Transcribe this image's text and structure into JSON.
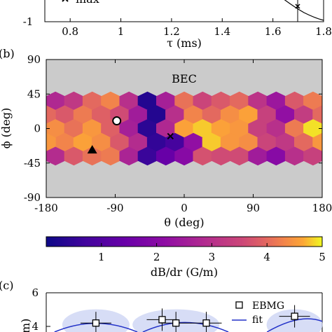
{
  "chart_data": [
    {
      "type": "line",
      "panel_label": "",
      "xlabel": "τ (ms)",
      "xlim": [
        0.7,
        1.8
      ],
      "xticks": [
        "0.8",
        "1",
        "1.2",
        "1.4",
        "1.6",
        "1.8"
      ],
      "yticks": [
        "-1"
      ],
      "legend": [
        "max"
      ],
      "marker": {
        "x": 1.7,
        "y": -0.85
      }
    },
    {
      "type": "heatmap",
      "panel_label": "(b)",
      "title": "BEC",
      "xlabel": "θ (deg)",
      "ylabel": "ϕ (deg)",
      "xlim": [
        -180,
        180
      ],
      "ylim": [
        -90,
        90
      ],
      "xticks": [
        "-180",
        "-90",
        "0",
        "90",
        "180"
      ],
      "yticks": [
        "90",
        "45",
        "0",
        "-45",
        "-90"
      ],
      "colorbar": {
        "label": "dB/dr (G/m)",
        "range": [
          0,
          5
        ],
        "ticks": [
          "1",
          "2",
          "3",
          "4",
          "5"
        ],
        "colormap": "plasma"
      },
      "cell_grid": {
        "columns": 15,
        "rows": 5,
        "theta_start": -180,
        "theta_step": 24,
        "phi_rows": [
          36,
          18,
          0,
          -18,
          -36
        ],
        "values": [
          [
            2.8,
            3.2,
            4.0,
            4.3,
            3.0,
            0.3,
            2.6,
            4.1,
            3.5,
            3.8,
            4.0,
            3.1,
            2.4,
            3.8,
            4.2
          ],
          [
            3.8,
            4.2,
            3.9,
            3.6,
            2.5,
            0.3,
            3.0,
            4.3,
            4.0,
            4.4,
            4.6,
            3.4,
            2.2,
            3.3,
            4.0
          ],
          [
            4.4,
            4.1,
            4.5,
            3.9,
            2.6,
            0.4,
            2.8,
            4.6,
            4.8,
            4.6,
            4.5,
            3.4,
            3.0,
            4.2,
            4.9
          ],
          [
            4.3,
            4.6,
            4.4,
            3.8,
            2.9,
            0.5,
            0.8,
            2.2,
            4.8,
            4.5,
            4.4,
            3.5,
            3.2,
            4.0,
            4.5
          ],
          [
            2.9,
            3.8,
            4.1,
            4.2,
            2.7,
            0.6,
            1.4,
            2.0,
            3.7,
            3.6,
            3.6,
            2.5,
            2.0,
            3.0,
            3.4
          ]
        ]
      },
      "markers": [
        {
          "shape": "circle",
          "theta": -88,
          "phi": 10
        },
        {
          "shape": "cross",
          "theta": -18,
          "phi": -10
        },
        {
          "shape": "triangle",
          "theta": -120,
          "phi": -28
        }
      ]
    },
    {
      "type": "scatter",
      "panel_label": "(c)",
      "yticks": [
        "6",
        "4"
      ],
      "series": [
        {
          "name": "EBMG",
          "points": [
            {
              "x": 0.18,
              "y": 4.2
            },
            {
              "x": 0.42,
              "y": 4.4
            },
            {
              "x": 0.47,
              "y": 4.2
            },
            {
              "x": 0.58,
              "y": 4.2
            },
            {
              "x": 0.9,
              "y": 4.6
            }
          ]
        },
        {
          "name": "fit"
        }
      ]
    }
  ]
}
